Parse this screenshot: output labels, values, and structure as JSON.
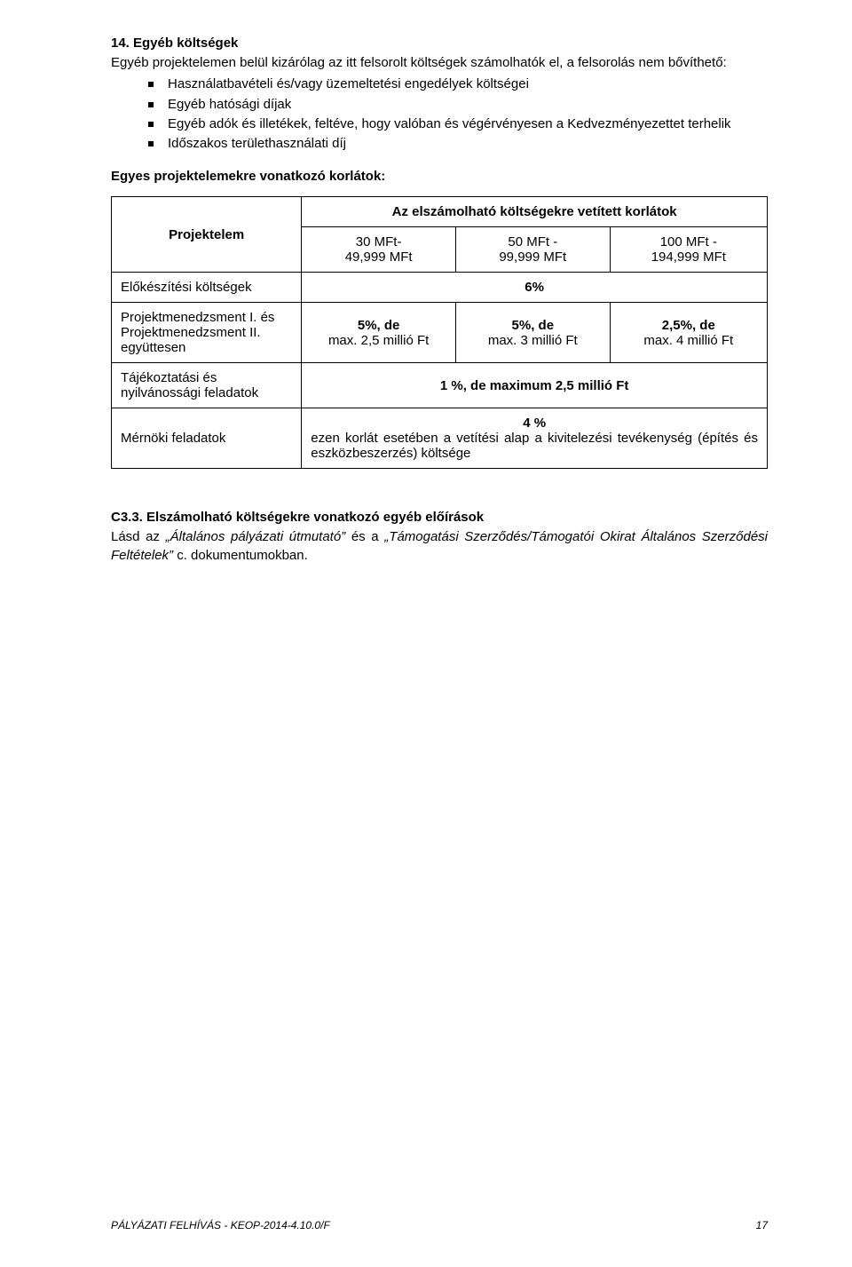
{
  "section14": {
    "heading": "14. Egyéb költségek",
    "intro": "Egyéb projektelemen belül kizárólag az itt felsorolt költségek számolhatók el, a felsorolás nem bővíthető:",
    "bullets": [
      "Használatbavételi és/vagy üzemeltetési engedélyek költségei",
      "Egyéb hatósági díjak",
      "Egyéb adók és illetékek, feltéve, hogy valóban és végérvényesen a Kedvezményezettet terhelik",
      "Időszakos területhasználati díj"
    ],
    "limits_heading": "Egyes projektelemekre vonatkozó korlátok:"
  },
  "table": {
    "span_header": "Az elszámolható költségekre vetített korlátok",
    "col_labels": {
      "projektelem": "Projektelem",
      "c1_top": "30 MFt-",
      "c1_bot": "49,999 MFt",
      "c2_top": "50 MFt -",
      "c2_bot": "99,999 MFt",
      "c3_top": "100 MFt -",
      "c3_bot": "194,999 MFt"
    },
    "rows": {
      "r1_label": "Előkészítési költségek",
      "r1_value": "6%",
      "r2_label": "Projektmenedzsment I. és Projektmenedzsment II. együttesen",
      "r2_c1_top": "5%, de",
      "r2_c1_bot": "max. 2,5 millió Ft",
      "r2_c2_top": "5%, de",
      "r2_c2_bot": "max. 3 millió Ft",
      "r2_c3_top": "2,5%, de",
      "r2_c3_bot": "max. 4 millió Ft",
      "r3_label": "Tájékoztatási és nyilvánossági feladatok",
      "r3_value": "1 %, de maximum 2,5 millió Ft",
      "r4_label": "Mérnöki feladatok",
      "r4_percent": "4 %",
      "r4_text": "ezen korlát esetében a vetítési alap a kivitelezési tevékenység (építés és eszközbeszerzés) költsége"
    }
  },
  "c33": {
    "title": "C3.3. Elszámolható költségekre vonatkozó egyéb előírások",
    "lead_roman1": "Lásd az ",
    "ital1": "„Általános pályázati útmutató”",
    "roman_mid": " és a ",
    "ital2": "„Támogatási Szerződés/Támogatói Okirat Általános Szerződési Feltételek”",
    "roman_tail": " c. dokumentumokban."
  },
  "footer": {
    "left": "PÁLYÁZATI FELHÍVÁS - KEOP-2014-4.10.0/F",
    "page": "17"
  }
}
